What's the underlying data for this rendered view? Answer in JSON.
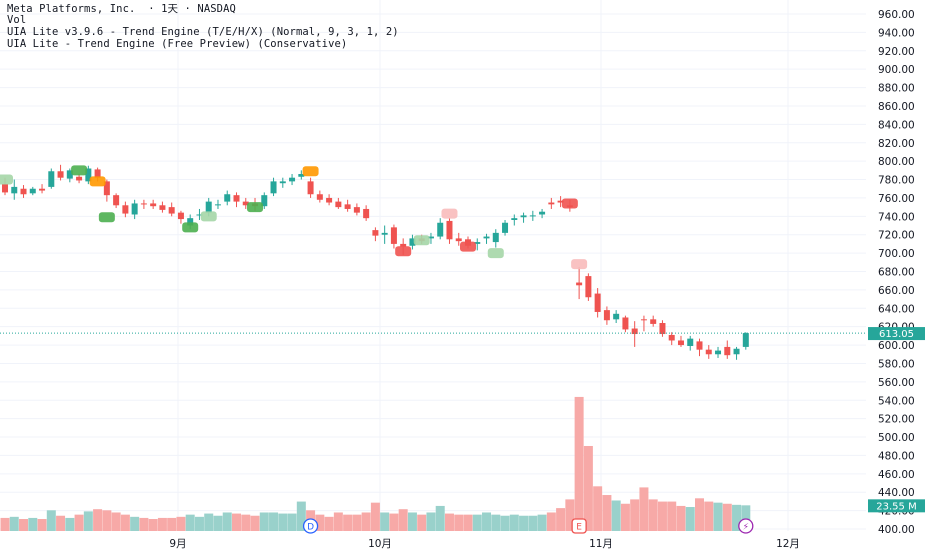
{
  "header": {
    "symbol_line": "Meta Platforms, Inc.  · 1天 · NASDAQ",
    "vol_label": "Vol",
    "indicator_1": "UIA Lite v3.9.6 - Trend Engine (T/E/H/X) (Normal, 9, 3, 1, 2)",
    "indicator_2": "UIA Lite - Trend Engine (Free Preview) (Conservative)"
  },
  "colors": {
    "up": "#26a69a",
    "down": "#ef5350",
    "vol_up": "#99d1cb",
    "vol_down": "#f7a9a7",
    "grid": "#f0f3fa",
    "last_price_line": "#26a69a",
    "marker_orange": "#ff9800",
    "marker_green": "#4caf50",
    "marker_red": "#ef5350",
    "earnings_purple": "#9c27b0"
  },
  "axis": {
    "price_ticks": [
      "960.00",
      "940.00",
      "920.00",
      "900.00",
      "880.00",
      "860.00",
      "840.00",
      "820.00",
      "800.00",
      "780.00",
      "760.00",
      "740.00",
      "720.00",
      "700.00",
      "680.00",
      "660.00",
      "640.00",
      "620.00",
      "600.00",
      "580.00",
      "560.00",
      "540.00",
      "520.00",
      "500.00",
      "480.00",
      "460.00",
      "440.00",
      "420.00",
      "400.00"
    ],
    "months": [
      "9月",
      "10月",
      "11月",
      "12月"
    ]
  },
  "price_tag": {
    "value": "613.05"
  },
  "volume_tag": {
    "value": "23.55 M"
  },
  "event_badges": {
    "dividend": "D",
    "earnings": "E",
    "flash": "⚡"
  },
  "chart_data": {
    "type": "candlestick",
    "symbol": "META",
    "interval": "1天",
    "ylim": [
      395,
      970
    ],
    "last_price": 613.05,
    "last_volume": "23.55 M",
    "candles": [
      {
        "o": 775,
        "h": 782,
        "l": 763,
        "c": 766,
        "v": 12
      },
      {
        "o": 765,
        "h": 780,
        "l": 758,
        "c": 772,
        "v": 13
      },
      {
        "o": 770,
        "h": 774,
        "l": 760,
        "c": 764,
        "v": 11
      },
      {
        "o": 765,
        "h": 772,
        "l": 763,
        "c": 770,
        "v": 12
      },
      {
        "o": 770,
        "h": 775,
        "l": 765,
        "c": 768,
        "v": 11
      },
      {
        "o": 772,
        "h": 792,
        "l": 770,
        "c": 789,
        "v": 19
      },
      {
        "o": 789,
        "h": 796,
        "l": 779,
        "c": 782,
        "v": 14
      },
      {
        "o": 781,
        "h": 792,
        "l": 777,
        "c": 790,
        "v": 12
      },
      {
        "o": 783,
        "h": 786,
        "l": 776,
        "c": 779,
        "v": 15
      },
      {
        "o": 778,
        "h": 795,
        "l": 775,
        "c": 792,
        "v": 18
      },
      {
        "o": 791,
        "h": 793,
        "l": 778,
        "c": 782,
        "v": 20
      },
      {
        "o": 778,
        "h": 780,
        "l": 756,
        "c": 763,
        "v": 19
      },
      {
        "o": 763,
        "h": 765,
        "l": 749,
        "c": 752,
        "v": 17
      },
      {
        "o": 752,
        "h": 756,
        "l": 739,
        "c": 743,
        "v": 15
      },
      {
        "o": 742,
        "h": 758,
        "l": 737,
        "c": 754,
        "v": 13
      },
      {
        "o": 754,
        "h": 758,
        "l": 748,
        "c": 753,
        "v": 12
      },
      {
        "o": 754,
        "h": 758,
        "l": 748,
        "c": 751,
        "v": 11
      },
      {
        "o": 752,
        "h": 756,
        "l": 744,
        "c": 747,
        "v": 12
      },
      {
        "o": 750,
        "h": 755,
        "l": 740,
        "c": 743,
        "v": 12
      },
      {
        "o": 744,
        "h": 746,
        "l": 732,
        "c": 737,
        "v": 13
      },
      {
        "o": 730,
        "h": 742,
        "l": 726,
        "c": 738,
        "v": 15
      },
      {
        "o": 741,
        "h": 748,
        "l": 736,
        "c": 742,
        "v": 13
      },
      {
        "o": 744,
        "h": 760,
        "l": 740,
        "c": 756,
        "v": 16
      },
      {
        "o": 752,
        "h": 758,
        "l": 748,
        "c": 753,
        "v": 14
      },
      {
        "o": 756,
        "h": 768,
        "l": 752,
        "c": 764,
        "v": 17
      },
      {
        "o": 763,
        "h": 766,
        "l": 750,
        "c": 756,
        "v": 16
      },
      {
        "o": 756,
        "h": 760,
        "l": 748,
        "c": 752,
        "v": 15
      },
      {
        "o": 754,
        "h": 760,
        "l": 746,
        "c": 751,
        "v": 14
      },
      {
        "o": 751,
        "h": 766,
        "l": 748,
        "c": 763,
        "v": 17
      },
      {
        "o": 765,
        "h": 782,
        "l": 762,
        "c": 778,
        "v": 17
      },
      {
        "o": 776,
        "h": 782,
        "l": 771,
        "c": 778,
        "v": 16
      },
      {
        "o": 778,
        "h": 786,
        "l": 774,
        "c": 782,
        "v": 16
      },
      {
        "o": 783,
        "h": 790,
        "l": 780,
        "c": 786,
        "v": 27
      },
      {
        "o": 778,
        "h": 782,
        "l": 760,
        "c": 764,
        "v": 19
      },
      {
        "o": 764,
        "h": 768,
        "l": 755,
        "c": 758,
        "v": 15
      },
      {
        "o": 760,
        "h": 764,
        "l": 752,
        "c": 755,
        "v": 13
      },
      {
        "o": 756,
        "h": 760,
        "l": 748,
        "c": 750,
        "v": 17
      },
      {
        "o": 753,
        "h": 758,
        "l": 745,
        "c": 748,
        "v": 15
      },
      {
        "o": 750,
        "h": 754,
        "l": 741,
        "c": 744,
        "v": 15
      },
      {
        "o": 748,
        "h": 752,
        "l": 735,
        "c": 738,
        "v": 17
      },
      {
        "o": 725,
        "h": 728,
        "l": 713,
        "c": 719,
        "v": 26
      },
      {
        "o": 720,
        "h": 730,
        "l": 710,
        "c": 722,
        "v": 17
      },
      {
        "o": 728,
        "h": 731,
        "l": 705,
        "c": 710,
        "v": 16
      },
      {
        "o": 710,
        "h": 716,
        "l": 698,
        "c": 707,
        "v": 20
      },
      {
        "o": 708,
        "h": 720,
        "l": 704,
        "c": 716,
        "v": 17
      },
      {
        "o": 716,
        "h": 720,
        "l": 710,
        "c": 713,
        "v": 15
      },
      {
        "o": 716,
        "h": 722,
        "l": 710,
        "c": 718,
        "v": 17
      },
      {
        "o": 718,
        "h": 738,
        "l": 715,
        "c": 733,
        "v": 23
      },
      {
        "o": 735,
        "h": 738,
        "l": 710,
        "c": 715,
        "v": 16
      },
      {
        "o": 716,
        "h": 722,
        "l": 708,
        "c": 713,
        "v": 15
      },
      {
        "o": 715,
        "h": 718,
        "l": 705,
        "c": 708,
        "v": 15
      },
      {
        "o": 710,
        "h": 716,
        "l": 703,
        "c": 712,
        "v": 15
      },
      {
        "o": 716,
        "h": 721,
        "l": 710,
        "c": 718,
        "v": 17
      },
      {
        "o": 712,
        "h": 726,
        "l": 706,
        "c": 722,
        "v": 15
      },
      {
        "o": 722,
        "h": 736,
        "l": 719,
        "c": 733,
        "v": 14
      },
      {
        "o": 736,
        "h": 742,
        "l": 730,
        "c": 738,
        "v": 15
      },
      {
        "o": 739,
        "h": 744,
        "l": 733,
        "c": 741,
        "v": 14
      },
      {
        "o": 740,
        "h": 746,
        "l": 735,
        "c": 741,
        "v": 14
      },
      {
        "o": 742,
        "h": 748,
        "l": 738,
        "c": 745,
        "v": 15
      },
      {
        "o": 755,
        "h": 760,
        "l": 748,
        "c": 753,
        "v": 17
      },
      {
        "o": 757,
        "h": 762,
        "l": 750,
        "c": 755,
        "v": 21
      },
      {
        "o": 752,
        "h": 758,
        "l": 745,
        "c": 750,
        "v": 29
      },
      {
        "o": 668,
        "h": 685,
        "l": 650,
        "c": 665,
        "v": 123
      },
      {
        "o": 675,
        "h": 678,
        "l": 648,
        "c": 652,
        "v": 78
      },
      {
        "o": 656,
        "h": 662,
        "l": 630,
        "c": 636,
        "v": 41
      },
      {
        "o": 638,
        "h": 642,
        "l": 622,
        "c": 627,
        "v": 33
      },
      {
        "o": 628,
        "h": 638,
        "l": 624,
        "c": 634,
        "v": 28
      },
      {
        "o": 630,
        "h": 632,
        "l": 614,
        "c": 617,
        "v": 25
      },
      {
        "o": 618,
        "h": 626,
        "l": 598,
        "c": 612,
        "v": 29
      },
      {
        "o": 628,
        "h": 632,
        "l": 615,
        "c": 627,
        "v": 40
      },
      {
        "o": 628,
        "h": 632,
        "l": 620,
        "c": 623,
        "v": 29
      },
      {
        "o": 624,
        "h": 627,
        "l": 609,
        "c": 612,
        "v": 27
      },
      {
        "o": 611,
        "h": 614,
        "l": 600,
        "c": 605,
        "v": 27
      },
      {
        "o": 605,
        "h": 610,
        "l": 598,
        "c": 600,
        "v": 23
      },
      {
        "o": 599,
        "h": 610,
        "l": 594,
        "c": 607,
        "v": 22
      },
      {
        "o": 604,
        "h": 607,
        "l": 588,
        "c": 595,
        "v": 30
      },
      {
        "o": 595,
        "h": 600,
        "l": 585,
        "c": 590,
        "v": 27
      },
      {
        "o": 590,
        "h": 598,
        "l": 586,
        "c": 594,
        "v": 26
      },
      {
        "o": 598,
        "h": 605,
        "l": 585,
        "c": 589,
        "v": 25
      },
      {
        "o": 590,
        "h": 598,
        "l": 584,
        "c": 596,
        "v": 24
      },
      {
        "o": 598,
        "h": 614,
        "l": 595,
        "c": 613.05,
        "v": 23.55
      }
    ]
  }
}
